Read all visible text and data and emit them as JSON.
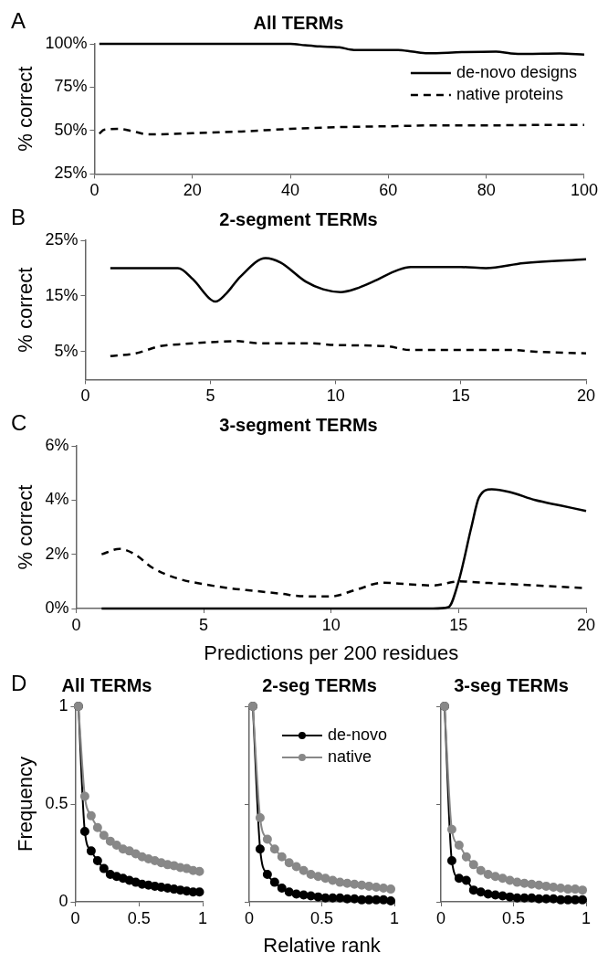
{
  "chart_data": [
    {
      "type": "line",
      "title": "All TERMs",
      "ylabel": "% correct",
      "annotations": [
        "A"
      ],
      "xlim": [
        0,
        100
      ],
      "xticks": [
        0,
        20,
        40,
        60,
        80,
        100
      ],
      "ylim": [
        25,
        100
      ],
      "yticks": [
        {
          "value": 25,
          "label": "25%"
        },
        {
          "value": 50,
          "label": "50%"
        },
        {
          "value": 75,
          "label": "75%"
        },
        {
          "value": 100,
          "label": "100%"
        }
      ],
      "grid": false,
      "legend": "top right",
      "marker": "none",
      "series": [
        {
          "name": "de-novo designs",
          "color": "#000000",
          "line_style": "solid",
          "x": [
            1,
            10,
            20,
            30,
            40,
            43,
            46,
            50,
            53,
            56,
            60,
            62,
            65,
            68,
            75,
            82,
            85,
            88,
            95,
            100
          ],
          "values": [
            100,
            100,
            100,
            100,
            100,
            99.2,
            98.5,
            98,
            96.5,
            96.5,
            96.5,
            96.5,
            95.5,
            94.6,
            95.2,
            95.5,
            94.5,
            94.2,
            94.5,
            93.8
          ]
        },
        {
          "name": "native proteins",
          "color": "#000000",
          "line_style": "dashed",
          "x": [
            1,
            2,
            5,
            8,
            11,
            20,
            30,
            40,
            50,
            60,
            70,
            80,
            90,
            100
          ],
          "values": [
            48.3,
            50.5,
            51,
            49.5,
            47.8,
            48.5,
            49.5,
            51,
            52,
            52.5,
            53,
            53,
            53.2,
            53.2
          ]
        }
      ]
    },
    {
      "type": "line",
      "title": "2-segment TERMs",
      "ylabel": "% correct",
      "annotations": [
        "B"
      ],
      "xlim": [
        0,
        20
      ],
      "xticks": [
        0,
        5,
        10,
        15,
        20
      ],
      "ylim": [
        0,
        25
      ],
      "yticks": [
        {
          "value": 5,
          "label": "5%"
        },
        {
          "value": 15,
          "label": "15%"
        },
        {
          "value": 25,
          "label": "25%"
        }
      ],
      "grid": false,
      "marker": "none",
      "series": [
        {
          "color": "#000000",
          "line_style": "solid",
          "x": [
            1,
            2,
            3,
            3.7,
            4.3,
            5,
            5.2,
            5.6,
            6.2,
            7.2,
            7.8,
            8.8,
            9.5,
            10.2,
            10.8,
            11.5,
            12.5,
            13,
            15,
            16,
            17.5,
            20
          ],
          "values": [
            20,
            20,
            20,
            20,
            18,
            14.4,
            14,
            15.3,
            18.5,
            21.8,
            21,
            17.6,
            16.2,
            15.7,
            16.3,
            17.6,
            19.7,
            20.2,
            20.2,
            20,
            20.9,
            21.6
          ]
        },
        {
          "color": "#000000",
          "line_style": "dashed",
          "x": [
            1,
            2,
            3,
            4,
            5,
            6,
            7,
            9,
            10,
            12,
            13,
            15,
            17,
            18,
            20
          ],
          "values": [
            4.2,
            4.7,
            6,
            6.4,
            6.7,
            6.9,
            6.5,
            6.5,
            6.2,
            6,
            5.3,
            5.3,
            5.3,
            5,
            4.7
          ]
        }
      ]
    },
    {
      "type": "line",
      "title": "3-segment TERMs",
      "ylabel": "% correct",
      "xlabel": "Predictions per 200 residues",
      "annotations": [
        "C"
      ],
      "xlim": [
        0,
        20
      ],
      "xticks": [
        0,
        5,
        10,
        15,
        20
      ],
      "ylim": [
        0,
        6
      ],
      "yticks": [
        {
          "value": 0,
          "label": "0%"
        },
        {
          "value": 2,
          "label": "2%"
        },
        {
          "value": 4,
          "label": "4%"
        },
        {
          "value": 6,
          "label": "6%"
        }
      ],
      "grid": false,
      "marker": "none",
      "series": [
        {
          "color": "#000000",
          "line_style": "solid",
          "x": [
            1,
            5,
            10,
            14,
            14.6,
            15,
            15.5,
            15.8,
            16.3,
            17,
            18,
            19,
            20
          ],
          "values": [
            0,
            0,
            0,
            0,
            0.05,
            1,
            3,
            4.1,
            4.4,
            4.3,
            4,
            3.8,
            3.6
          ]
        },
        {
          "color": "#000000",
          "line_style": "dashed",
          "x": [
            1,
            1.7,
            2.3,
            3,
            4,
            5,
            6,
            7,
            8,
            9,
            10,
            11,
            12,
            13,
            14,
            15,
            16,
            17,
            18,
            19,
            20
          ],
          "values": [
            2,
            2.2,
            2,
            1.5,
            1.1,
            0.9,
            0.75,
            0.65,
            0.55,
            0.45,
            0.45,
            0.7,
            0.95,
            0.9,
            0.85,
            1,
            0.95,
            0.9,
            0.85,
            0.8,
            0.75
          ]
        }
      ]
    },
    {
      "type": "line",
      "title": "All TERMs",
      "ylabel": "Frequency",
      "annotations": [
        "D"
      ],
      "xlim": [
        0,
        1
      ],
      "xticks": [
        0,
        0.5,
        1
      ],
      "ylim": [
        0,
        1
      ],
      "yticks": [
        0,
        0.5,
        1
      ],
      "grid": false,
      "marker": "circle",
      "series": [
        {
          "color": "#000000",
          "x": [
            0.025,
            0.075,
            0.125,
            0.175,
            0.225,
            0.275,
            0.325,
            0.375,
            0.425,
            0.475,
            0.525,
            0.575,
            0.625,
            0.675,
            0.725,
            0.775,
            0.825,
            0.875,
            0.925,
            0.975
          ],
          "values": [
            1,
            0.36,
            0.26,
            0.21,
            0.17,
            0.14,
            0.13,
            0.12,
            0.11,
            0.1,
            0.09,
            0.085,
            0.08,
            0.075,
            0.07,
            0.065,
            0.06,
            0.055,
            0.05,
            0.05
          ]
        },
        {
          "color": "#888888",
          "x": [
            0.025,
            0.075,
            0.125,
            0.175,
            0.225,
            0.275,
            0.325,
            0.375,
            0.425,
            0.475,
            0.525,
            0.575,
            0.625,
            0.675,
            0.725,
            0.775,
            0.825,
            0.875,
            0.925,
            0.975
          ],
          "values": [
            1,
            0.54,
            0.44,
            0.38,
            0.34,
            0.31,
            0.29,
            0.27,
            0.26,
            0.245,
            0.23,
            0.22,
            0.21,
            0.2,
            0.19,
            0.185,
            0.175,
            0.17,
            0.16,
            0.155
          ]
        }
      ]
    },
    {
      "type": "line",
      "title": "2-seg TERMs",
      "xlabel": "Relative rank",
      "xlim": [
        0,
        1
      ],
      "xticks": [
        0,
        0.5,
        1
      ],
      "ylim": [
        0,
        1
      ],
      "yticks": [
        0,
        0.5,
        1
      ],
      "tick_labels": "x",
      "grid": false,
      "legend": "top right",
      "marker": "circle",
      "series": [
        {
          "name": "de-novo",
          "color": "#000000",
          "x": [
            0.025,
            0.075,
            0.125,
            0.175,
            0.225,
            0.275,
            0.325,
            0.375,
            0.425,
            0.475,
            0.525,
            0.575,
            0.625,
            0.675,
            0.725,
            0.775,
            0.825,
            0.875,
            0.925,
            0.975
          ],
          "values": [
            1,
            0.27,
            0.14,
            0.1,
            0.07,
            0.05,
            0.04,
            0.035,
            0.03,
            0.025,
            0.02,
            0.02,
            0.02,
            0.015,
            0.015,
            0.01,
            0.01,
            0.01,
            0.01,
            0.005
          ]
        },
        {
          "name": "native",
          "color": "#888888",
          "x": [
            0.025,
            0.075,
            0.125,
            0.175,
            0.225,
            0.275,
            0.325,
            0.375,
            0.425,
            0.475,
            0.525,
            0.575,
            0.625,
            0.675,
            0.725,
            0.775,
            0.825,
            0.875,
            0.925,
            0.975
          ],
          "values": [
            1,
            0.43,
            0.32,
            0.27,
            0.23,
            0.2,
            0.18,
            0.16,
            0.14,
            0.13,
            0.12,
            0.11,
            0.1,
            0.095,
            0.09,
            0.085,
            0.08,
            0.075,
            0.07,
            0.065
          ]
        }
      ]
    },
    {
      "type": "line",
      "title": "3-seg TERMs",
      "xlim": [
        0,
        1
      ],
      "xticks": [
        0,
        0.5,
        1
      ],
      "ylim": [
        0,
        1
      ],
      "yticks": [
        0,
        0.5,
        1
      ],
      "tick_labels": "x",
      "grid": false,
      "marker": "circle",
      "series": [
        {
          "color": "#000000",
          "x": [
            0.025,
            0.075,
            0.125,
            0.175,
            0.225,
            0.275,
            0.325,
            0.375,
            0.425,
            0.475,
            0.525,
            0.575,
            0.625,
            0.675,
            0.725,
            0.775,
            0.825,
            0.875,
            0.925,
            0.975
          ],
          "values": [
            1,
            0.21,
            0.12,
            0.11,
            0.06,
            0.05,
            0.04,
            0.035,
            0.03,
            0.025,
            0.02,
            0.02,
            0.02,
            0.015,
            0.015,
            0.015,
            0.01,
            0.01,
            0.01,
            0.01
          ]
        },
        {
          "color": "#888888",
          "x": [
            0.025,
            0.075,
            0.125,
            0.175,
            0.225,
            0.275,
            0.325,
            0.375,
            0.425,
            0.475,
            0.525,
            0.575,
            0.625,
            0.675,
            0.725,
            0.775,
            0.825,
            0.875,
            0.925,
            0.975
          ],
          "values": [
            1,
            0.37,
            0.29,
            0.23,
            0.19,
            0.16,
            0.14,
            0.13,
            0.12,
            0.11,
            0.1,
            0.095,
            0.09,
            0.085,
            0.08,
            0.075,
            0.07,
            0.065,
            0.065,
            0.06
          ]
        }
      ]
    }
  ]
}
